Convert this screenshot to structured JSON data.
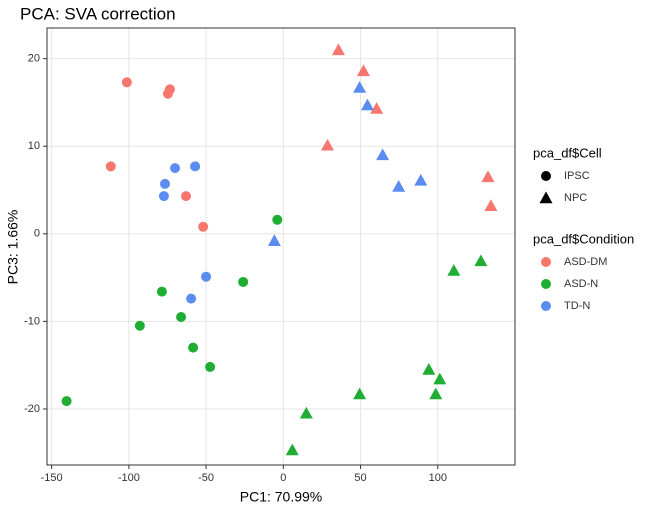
{
  "chart_data": {
    "type": "scatter",
    "title": "PCA: SVA correction",
    "x_label": "PC1: 70.99%",
    "y_label": "PC3: 1.66%",
    "xlim": [
      -153,
      150
    ],
    "ylim": [
      -26.4,
      23.5
    ],
    "xticks": [
      -150,
      -100,
      -50,
      0,
      50,
      100
    ],
    "yticks": [
      -20,
      -10,
      0,
      10,
      20
    ],
    "grid": true,
    "legends": [
      {
        "title": "pca_df$Cell",
        "entries": [
          "IPSC",
          "NPC"
        ],
        "shapes": [
          "circle",
          "triangle"
        ]
      },
      {
        "title": "pca_df$Condition",
        "entries": [
          "ASD-DM",
          "ASD-N",
          "TD-N"
        ],
        "colors": [
          "#f8766d",
          "#1fad33",
          "#5a8cf2"
        ]
      }
    ],
    "series": [
      {
        "name": "ASD-DM",
        "cell": "IPSC",
        "shape": "circle",
        "color": "#f8766d",
        "x": [
          -101.3,
          -73.4,
          -74.7,
          -111.7,
          -63,
          -51.9
        ],
        "values": [
          17.3,
          16.5,
          16.0,
          7.7,
          4.3,
          0.8
        ]
      },
      {
        "name": "ASD-DM",
        "cell": "NPC",
        "shape": "triangle",
        "color": "#f8766d",
        "x": [
          35.7,
          51.9,
          60.4,
          28.6,
          132.5,
          134.4
        ],
        "values": [
          21.0,
          18.6,
          14.3,
          10.1,
          6.5,
          3.2
        ]
      },
      {
        "name": "ASD-N",
        "cell": "IPSC",
        "shape": "circle",
        "color": "#1fad33",
        "x": [
          -3.9,
          -26,
          -78.6,
          -66.2,
          -92.9,
          -58.4,
          -47.4,
          -140.3
        ],
        "values": [
          1.6,
          -5.5,
          -6.6,
          -9.5,
          -10.5,
          -13.0,
          -15.2,
          -19.1
        ]
      },
      {
        "name": "ASD-N",
        "cell": "NPC",
        "shape": "triangle",
        "color": "#1fad33",
        "x": [
          110.4,
          127.9,
          94.2,
          101.3,
          98.7,
          49.4,
          14.9,
          5.8
        ],
        "values": [
          -4.2,
          -3.1,
          -15.5,
          -16.6,
          -18.3,
          -18.3,
          -20.5,
          -24.7
        ]
      },
      {
        "name": "TD-N",
        "cell": "IPSC",
        "shape": "circle",
        "color": "#5a8cf2",
        "x": [
          -70.1,
          -57.1,
          -76.6,
          -77.3,
          -50,
          -59.7
        ],
        "values": [
          7.5,
          7.7,
          5.7,
          4.3,
          -4.9,
          -7.4
        ]
      },
      {
        "name": "TD-N",
        "cell": "NPC",
        "shape": "triangle",
        "color": "#5a8cf2",
        "x": [
          49.4,
          54.5,
          64.3,
          74.7,
          89,
          -5.8
        ],
        "values": [
          16.7,
          14.7,
          9.0,
          5.4,
          6.1,
          -0.8
        ]
      }
    ]
  }
}
